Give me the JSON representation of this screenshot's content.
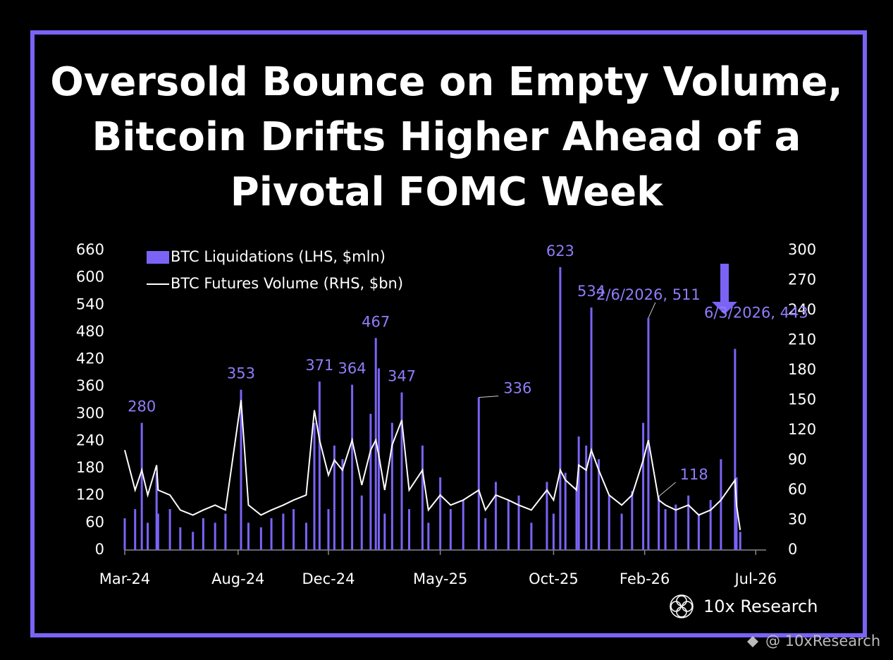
{
  "chart_data": {
    "type": "bar-line",
    "title": "Oversold Bounce on Empty Volume, Bitcoin Drifts Higher Ahead of a Pivotal FOMC Week",
    "x": [
      "2024-03-01",
      "2024-03-15",
      "2024-03-24",
      "2024-04-01",
      "2024-04-13",
      "2024-04-15",
      "2024-05-01",
      "2024-05-15",
      "2024-06-01",
      "2024-06-15",
      "2024-07-01",
      "2024-07-15",
      "2024-08-05",
      "2024-08-15",
      "2024-09-01",
      "2024-09-15",
      "2024-10-01",
      "2024-10-15",
      "2024-11-01",
      "2024-11-12",
      "2024-11-19",
      "2024-12-01",
      "2024-12-09",
      "2024-12-20",
      "2025-01-02",
      "2025-01-15",
      "2025-01-27",
      "2025-02-03",
      "2025-02-07",
      "2025-02-15",
      "2025-02-25",
      "2025-03-10",
      "2025-03-20",
      "2025-04-07",
      "2025-04-15",
      "2025-05-01",
      "2025-05-15",
      "2025-06-01",
      "2025-06-22",
      "2025-07-01",
      "2025-07-15",
      "2025-08-01",
      "2025-08-15",
      "2025-09-01",
      "2025-09-22",
      "2025-10-01",
      "2025-10-10",
      "2025-10-17",
      "2025-11-01",
      "2025-11-04",
      "2025-11-14",
      "2025-11-21",
      "2025-12-01",
      "2025-12-15",
      "2026-01-01",
      "2026-01-15",
      "2026-01-30",
      "2026-02-06",
      "2026-02-20",
      "2026-03-01",
      "2026-03-15",
      "2026-04-01",
      "2026-04-15",
      "2026-05-01",
      "2026-05-15",
      "2026-06-03",
      "2026-06-05",
      "2026-06-10"
    ],
    "series": [
      {
        "name": "BTC Liquidations (LHS, $mln)",
        "color": "#7b63f5",
        "kind": "bar",
        "values": [
          70,
          90,
          280,
          60,
          170,
          80,
          90,
          50,
          40,
          70,
          60,
          80,
          353,
          60,
          50,
          70,
          80,
          90,
          60,
          280,
          371,
          90,
          230,
          200,
          364,
          120,
          300,
          467,
          400,
          80,
          280,
          347,
          90,
          230,
          60,
          160,
          90,
          110,
          336,
          70,
          150,
          110,
          120,
          60,
          150,
          80,
          623,
          170,
          140,
          250,
          230,
          534,
          200,
          120,
          80,
          130,
          280,
          511,
          118,
          90,
          100,
          120,
          80,
          110,
          200,
          443,
          160,
          40
        ],
        "value_labels": [
          null,
          null,
          "280",
          null,
          null,
          null,
          null,
          null,
          null,
          null,
          null,
          null,
          "353",
          null,
          null,
          null,
          null,
          null,
          null,
          null,
          "371",
          null,
          null,
          null,
          "364",
          null,
          null,
          "467",
          null,
          null,
          null,
          "347",
          null,
          null,
          null,
          null,
          null,
          null,
          "336",
          null,
          null,
          null,
          null,
          null,
          null,
          null,
          "623",
          null,
          null,
          null,
          null,
          "534",
          null,
          null,
          null,
          null,
          null,
          "2/6/2026, 511",
          "118",
          null,
          null,
          null,
          null,
          null,
          null,
          "6/3/2026, 443",
          null,
          null
        ]
      },
      {
        "name": "BTC Futures Volume (RHS, $bn)",
        "color": "#ffffff",
        "kind": "line",
        "axis": "y2",
        "values": [
          100,
          60,
          80,
          55,
          85,
          60,
          55,
          40,
          35,
          40,
          45,
          40,
          150,
          45,
          35,
          40,
          45,
          50,
          55,
          140,
          110,
          75,
          90,
          80,
          110,
          65,
          100,
          110,
          95,
          60,
          105,
          130,
          60,
          80,
          40,
          55,
          45,
          50,
          60,
          40,
          55,
          50,
          45,
          40,
          60,
          50,
          80,
          70,
          60,
          85,
          80,
          100,
          80,
          55,
          45,
          55,
          90,
          110,
          50,
          45,
          40,
          45,
          35,
          40,
          50,
          70,
          45,
          20
        ]
      }
    ],
    "xlim": [
      "2024-03-01",
      "2026-07-15"
    ],
    "xticks": [
      {
        "value": "2024-03-01",
        "label": "Mar-24"
      },
      {
        "value": "2024-08-01",
        "label": "Aug-24"
      },
      {
        "value": "2024-12-01",
        "label": "Dec-24"
      },
      {
        "value": "2025-05-01",
        "label": "May-25"
      },
      {
        "value": "2025-10-01",
        "label": "Oct-25"
      },
      {
        "value": "2026-02-01",
        "label": "Feb-26"
      },
      {
        "value": "2026-07-01",
        "label": "Jul-26"
      }
    ],
    "ylim": [
      0,
      660
    ],
    "yticks": [
      0,
      60,
      120,
      180,
      240,
      300,
      360,
      420,
      480,
      540,
      600,
      660
    ],
    "y2lim": [
      0,
      300
    ],
    "y2ticks": [
      0,
      30,
      60,
      90,
      120,
      150,
      180,
      210,
      240,
      270,
      300
    ],
    "legend": "top-left"
  },
  "branding": {
    "logo": "10x Research",
    "handle": "@ 10xResearch"
  }
}
